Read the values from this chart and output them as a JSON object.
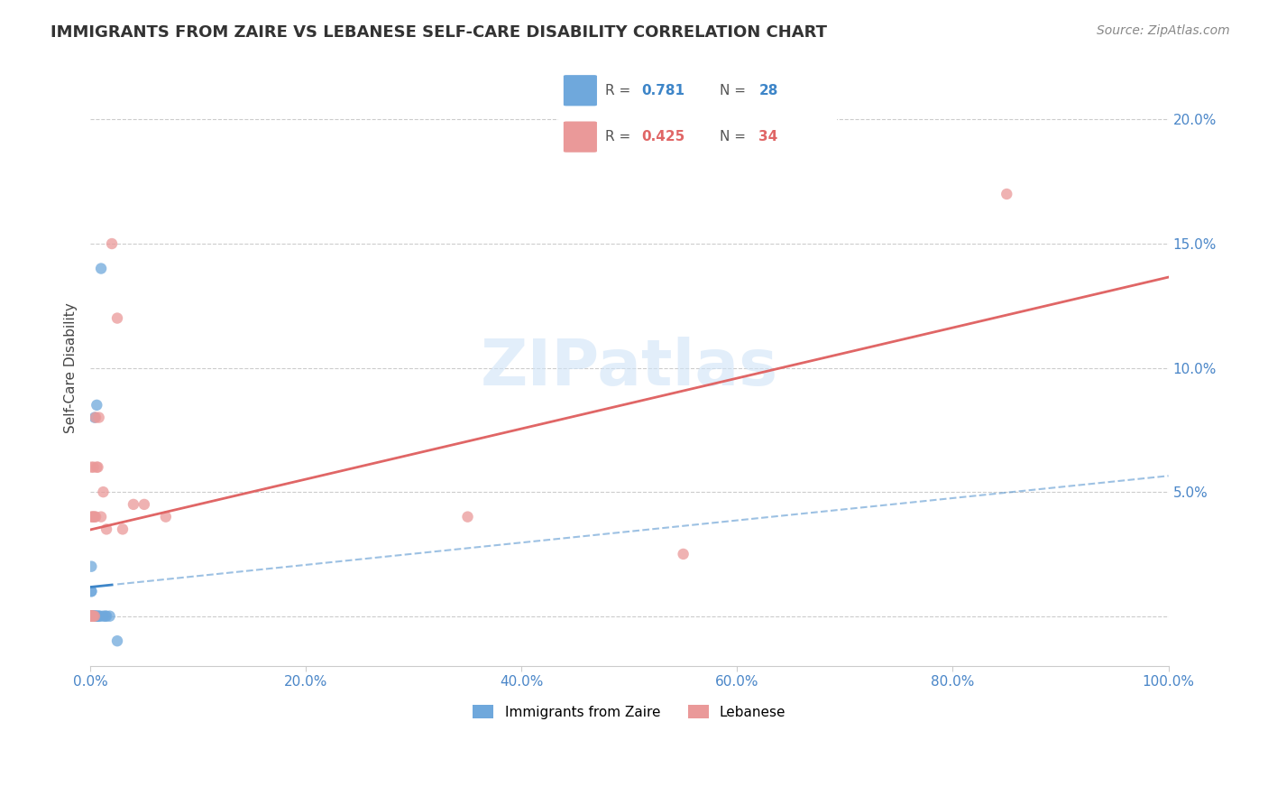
{
  "title": "IMMIGRANTS FROM ZAIRE VS LEBANESE SELF-CARE DISABILITY CORRELATION CHART",
  "source": "Source: ZipAtlas.com",
  "xlabel_bottom": "",
  "ylabel": "Self-Care Disability",
  "x_label_bottom_left": "0.0%",
  "x_label_bottom_right": "100.0%",
  "legend_r1": "R = ",
  "legend_r1_val": "0.781",
  "legend_n1": "N = ",
  "legend_n1_val": "28",
  "legend_r2": "R = ",
  "legend_r2_val": "0.425",
  "legend_n2": "N = ",
  "legend_n2_val": "34",
  "watermark": "ZIPatlas",
  "color_zaire": "#6fa8dc",
  "color_lebanese": "#ea9999",
  "trendline_color_zaire": "#3d85c8",
  "trendline_color_lebanese": "#e06666",
  "right_axis_ticks": [
    0.0,
    5.0,
    10.0,
    15.0,
    20.0
  ],
  "right_axis_labels": [
    "",
    "5.0%",
    "10.0%",
    "15.0%",
    "20.0%"
  ],
  "xlim": [
    0.0,
    1.0
  ],
  "ylim": [
    -0.02,
    0.22
  ],
  "zaire_x": [
    0.0,
    0.0,
    0.0,
    0.001,
    0.001,
    0.001,
    0.001,
    0.001,
    0.002,
    0.002,
    0.002,
    0.003,
    0.003,
    0.004,
    0.004,
    0.005,
    0.005,
    0.006,
    0.006,
    0.007,
    0.008,
    0.009,
    0.01,
    0.012,
    0.014,
    0.015,
    0.018,
    0.025
  ],
  "zaire_y": [
    0.0,
    0.0,
    0.0,
    0.0,
    0.0,
    0.01,
    0.01,
    0.02,
    0.0,
    0.0,
    0.0,
    0.0,
    0.0,
    0.08,
    0.0,
    0.0,
    0.0,
    0.0,
    0.085,
    0.0,
    0.0,
    0.0,
    0.14,
    0.0,
    0.0,
    0.0,
    0.0,
    -0.01
  ],
  "lebanese_x": [
    0.0,
    0.0,
    0.0,
    0.0,
    0.001,
    0.001,
    0.001,
    0.001,
    0.001,
    0.002,
    0.002,
    0.002,
    0.003,
    0.003,
    0.003,
    0.004,
    0.004,
    0.005,
    0.005,
    0.006,
    0.007,
    0.008,
    0.01,
    0.012,
    0.015,
    0.02,
    0.025,
    0.03,
    0.04,
    0.05,
    0.07,
    0.35,
    0.55,
    0.85
  ],
  "lebanese_y": [
    0.0,
    0.0,
    0.0,
    0.0,
    0.0,
    0.0,
    0.0,
    0.04,
    0.06,
    0.0,
    0.0,
    0.04,
    0.0,
    0.04,
    0.06,
    0.0,
    0.04,
    0.04,
    0.08,
    0.06,
    0.06,
    0.08,
    0.04,
    0.05,
    0.035,
    0.15,
    0.12,
    0.035,
    0.045,
    0.045,
    0.04,
    0.04,
    0.025,
    0.17
  ]
}
